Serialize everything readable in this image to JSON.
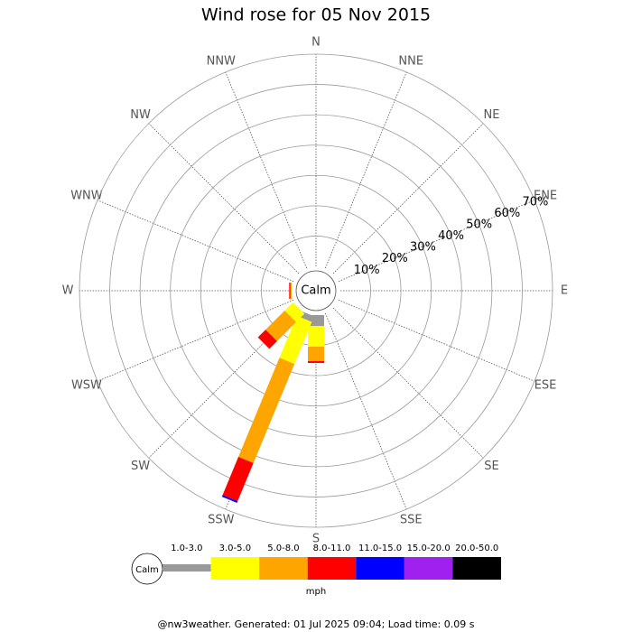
{
  "chart_data": {
    "type": "windrose",
    "title": "Wind rose for 05 Nov 2015",
    "calm_label": "Calm",
    "units": "mph",
    "footer": "@nw3weather. Generated: 01 Jul 2025 09:04; Load time: 0.09 s",
    "categories": [
      "N",
      "NNE",
      "NE",
      "ENE",
      "E",
      "ESE",
      "SE",
      "SSE",
      "S",
      "SSW",
      "SW",
      "WSW",
      "W",
      "WNW",
      "NW",
      "NNW"
    ],
    "rlim": [
      0,
      70
    ],
    "rticks": [
      {
        "value": 10,
        "label": "10%"
      },
      {
        "value": 20,
        "label": "20%"
      },
      {
        "value": 30,
        "label": "30%"
      },
      {
        "value": 40,
        "label": "40%"
      },
      {
        "value": 50,
        "label": "50%"
      },
      {
        "value": 60,
        "label": "60%"
      },
      {
        "value": 70,
        "label": "70%"
      }
    ],
    "series": [
      {
        "name": "1.0-3.0",
        "color": "#999999",
        "values": [
          0,
          0,
          0,
          0,
          0,
          0,
          0,
          0,
          3.6,
          2,
          0,
          0,
          0,
          0,
          0,
          0
        ]
      },
      {
        "name": "3.0-5.0",
        "color": "#ffff00",
        "values": [
          0,
          0,
          0,
          0,
          0,
          0,
          0,
          0,
          6.8,
          15,
          3.9,
          0,
          0,
          0,
          0,
          0
        ]
      },
      {
        "name": "5.0-8.0",
        "color": "#ffa500",
        "values": [
          0,
          0,
          0,
          0,
          0,
          0,
          0,
          0,
          4.8,
          35.4,
          8.9,
          0,
          0.4,
          0,
          0,
          0
        ]
      },
      {
        "name": "8.0-11.0",
        "color": "#ff0000",
        "values": [
          0,
          0,
          0,
          0,
          0,
          0,
          0,
          0,
          0.6,
          13.6,
          3.6,
          0,
          0.4,
          0,
          0,
          0
        ]
      },
      {
        "name": "11.0-15.0",
        "color": "#0000ff",
        "values": [
          0,
          0,
          0,
          0,
          0,
          0,
          0,
          0,
          0,
          0.6,
          0,
          0,
          0,
          0,
          0,
          0
        ]
      },
      {
        "name": "15.0-20.0",
        "color": "#a020f0",
        "values": [
          0,
          0,
          0,
          0,
          0,
          0,
          0,
          0,
          0,
          0,
          0,
          0,
          0,
          0,
          0,
          0
        ]
      },
      {
        "name": "20.0-50.0",
        "color": "#000000",
        "values": [
          0,
          0,
          0,
          0,
          0,
          0,
          0,
          0,
          0,
          0,
          0,
          0,
          0,
          0,
          0,
          0
        ]
      }
    ]
  }
}
